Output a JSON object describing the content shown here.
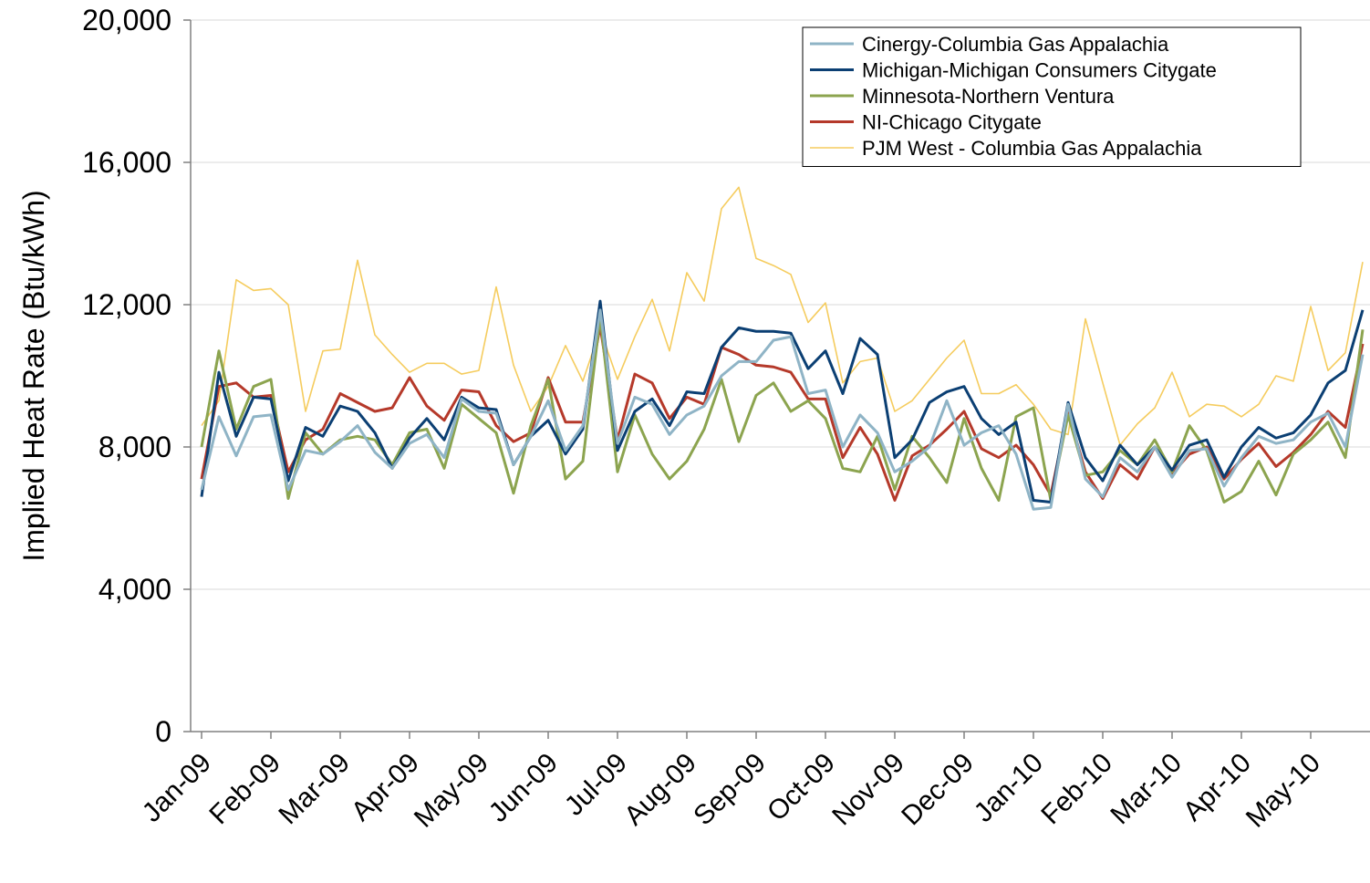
{
  "chart_data": {
    "type": "line",
    "y_label": "Implied Heat Rate (Btu/kWh)",
    "categories": [
      "Jan-09",
      null,
      null,
      null,
      "Feb-09",
      null,
      null,
      null,
      "Mar-09",
      null,
      null,
      null,
      "Apr-09",
      null,
      null,
      null,
      "May-09",
      null,
      null,
      null,
      "Jun-09",
      null,
      null,
      null,
      "Jul-09",
      null,
      null,
      null,
      "Aug-09",
      null,
      null,
      null,
      "Sep-09",
      null,
      null,
      null,
      "Oct-09",
      null,
      null,
      null,
      "Nov-09",
      null,
      null,
      null,
      "Dec-09",
      null,
      null,
      null,
      "Jan-10",
      null,
      null,
      null,
      "Feb-10",
      null,
      null,
      null,
      "Mar-10",
      null,
      null,
      null,
      "Apr-10",
      null,
      null,
      null,
      "May-10",
      null,
      null,
      null
    ],
    "series": [
      {
        "name": "Cinergy-Columbia Gas Appalachia",
        "color": "#8fb4c6",
        "values": [
          6800,
          8850,
          7750,
          8850,
          8900,
          6800,
          7900,
          7800,
          8150,
          8600,
          7850,
          7400,
          8100,
          8350,
          7700,
          9350,
          9000,
          8950,
          7500,
          8300,
          9300,
          7900,
          8600,
          11850,
          8100,
          9400,
          9200,
          8350,
          8900,
          9150,
          10000,
          10400,
          10400,
          11000,
          11100,
          9500,
          9600,
          8000,
          8900,
          8400,
          7300,
          7600,
          8000,
          9300,
          8050,
          8400,
          8600,
          7800,
          6250,
          6300,
          9200,
          7100,
          6600,
          7700,
          7300,
          8000,
          7150,
          7900,
          7950,
          6900,
          7700,
          8300,
          8100,
          8200,
          8700,
          8950,
          8000,
          10600
        ]
      },
      {
        "name": "Michigan-Michigan Consumers Citygate",
        "color": "#0b3f73",
        "values": [
          6600,
          10100,
          8300,
          9400,
          9350,
          7050,
          8550,
          8300,
          9150,
          9000,
          8400,
          7400,
          8250,
          8800,
          8200,
          9400,
          9100,
          9050,
          7500,
          8300,
          8750,
          7800,
          8500,
          12100,
          7900,
          9000,
          9350,
          8600,
          9550,
          9500,
          10800,
          11350,
          11250,
          11250,
          11200,
          10200,
          10700,
          9500,
          11050,
          10600,
          7700,
          8200,
          9250,
          9550,
          9700,
          8800,
          8350,
          8700,
          6500,
          6450,
          9250,
          7700,
          7050,
          8050,
          7500,
          8000,
          7350,
          8050,
          8200,
          7150,
          8000,
          8550,
          8250,
          8400,
          8900,
          9800,
          10150,
          11850
        ]
      },
      {
        "name": "Minnesota-Northern Ventura",
        "color": "#8ca44f",
        "values": [
          8000,
          10700,
          8500,
          9700,
          9900,
          6550,
          8400,
          7800,
          8200,
          8300,
          8200,
          7500,
          8400,
          8500,
          7400,
          9200,
          8800,
          8400,
          6700,
          8600,
          9900,
          7100,
          7600,
          11650,
          7300,
          8900,
          7800,
          7100,
          7600,
          8500,
          9900,
          8150,
          9450,
          9800,
          9000,
          9300,
          8800,
          7400,
          7300,
          8300,
          6800,
          8300,
          7700,
          7000,
          8800,
          7400,
          6500,
          8850,
          9100,
          6500,
          8900,
          7200,
          7300,
          7900,
          7500,
          8200,
          7300,
          8600,
          7900,
          6450,
          6750,
          7600,
          6650,
          7800,
          8200,
          8700,
          7700,
          11300
        ]
      },
      {
        "name": "NI-Chicago Citygate",
        "color": "#b5392a",
        "values": [
          7100,
          9700,
          9800,
          9400,
          9450,
          7300,
          8200,
          8500,
          9500,
          9250,
          9000,
          9100,
          9950,
          9150,
          8750,
          9600,
          9550,
          8600,
          8150,
          8400,
          9950,
          8700,
          8700,
          11400,
          8200,
          10050,
          9800,
          8800,
          9400,
          9200,
          10800,
          10600,
          10300,
          10250,
          10100,
          9350,
          9350,
          7700,
          8550,
          7800,
          6500,
          7750,
          8050,
          8500,
          9000,
          7950,
          7700,
          8050,
          7500,
          6650,
          9000,
          7300,
          6550,
          7500,
          7100,
          8000,
          7250,
          7800,
          8000,
          7100,
          7650,
          8100,
          7450,
          7850,
          8350,
          9000,
          8550,
          10900
        ]
      },
      {
        "name": "PJM West - Columbia Gas Appalachia",
        "color": "#f5cc5e",
        "values": [
          8600,
          9300,
          12700,
          12400,
          12450,
          12000,
          9000,
          10700,
          10750,
          13250,
          11150,
          10600,
          10100,
          10350,
          10350,
          10050,
          10150,
          12500,
          10300,
          9000,
          9700,
          10850,
          9850,
          11300,
          9900,
          11100,
          12150,
          10700,
          12900,
          12100,
          14700,
          15300,
          13300,
          13100,
          12850,
          11500,
          12050,
          9800,
          10400,
          10500,
          9000,
          9300,
          9900,
          10500,
          11000,
          9500,
          9500,
          9750,
          9200,
          8500,
          8350,
          11600,
          9800,
          8050,
          8650,
          9100,
          10100,
          8850,
          9200,
          9150,
          8850,
          9200,
          10000,
          9850,
          11950,
          10150,
          10650,
          13200
        ]
      }
    ],
    "ylim": [
      0,
      20000
    ],
    "yticks": [
      0,
      {
        "value": 4000,
        "label": "4,000"
      },
      {
        "value": 8000,
        "label": "8,000"
      },
      {
        "value": 12000,
        "label": "12,000"
      },
      {
        "value": 16000,
        "label": "16,000"
      },
      {
        "value": 20000,
        "label": "20,000"
      }
    ],
    "grid": true,
    "legend": "upper right"
  }
}
